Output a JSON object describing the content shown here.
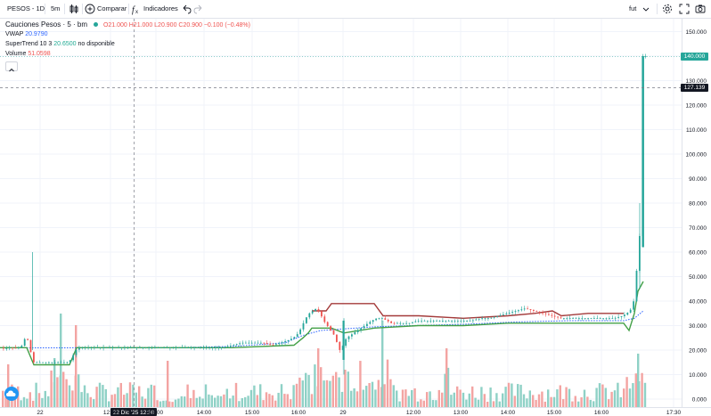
{
  "toolbar": {
    "symbol": "PESOS - 1D",
    "interval": "5m",
    "compare_label": "Comparar",
    "indicators_label": "Indicadores",
    "fut_label": "fut"
  },
  "legend": {
    "title": "Cauciones Pesos · 5 · bm",
    "ohlc": "O21.000 H21.000 L20.900 C20.900 −0.100 (−0.48%)",
    "vwap_label": "VWAP",
    "vwap_value": "20.9790",
    "supertrend_label": "SuperTrend 10 3",
    "supertrend_value": "20.6500",
    "supertrend_extra": "no disponible",
    "volume_label": "Volume",
    "volume_value": "51.0598"
  },
  "price_tags": {
    "last": "140.000",
    "crosshair": "127.139",
    "last_color": "#26a69a",
    "crosshair_color": "#131722"
  },
  "crosshair_time_label": "22 Dic '25   12:30",
  "colors": {
    "up": "#26a69a",
    "down": "#ef5350",
    "vol_up": "#8fd1c6",
    "vol_down": "#f3a4a2",
    "vwap": "#2962ff",
    "st_up": "#43a047",
    "st_down": "#a33a3a"
  },
  "chart_data": {
    "type": "candlestick",
    "symbol": "Cauciones Pesos",
    "y_axis": {
      "ylim": [
        0,
        150
      ],
      "tick_labels": [
        "150.000",
        "140.000",
        "130.000",
        "120.000",
        "110.000",
        "100.000",
        "90.000",
        "80.000",
        "70.000",
        "60.000",
        "50.000",
        "40.000",
        "30.000",
        "20.000",
        "10.000",
        "0.000"
      ]
    },
    "x_axis": {
      "tick_labels": [
        "22",
        "12:00",
        "13:00",
        "14:00",
        "15:00",
        "16:00",
        "29",
        "12:00",
        "13:00",
        "14:00",
        "15:00",
        "16:00",
        "17:30"
      ]
    },
    "price_path": [
      [
        0,
        21
      ],
      [
        6,
        20.5
      ],
      [
        12,
        21
      ],
      [
        18,
        20.8
      ],
      [
        22,
        21
      ],
      [
        26,
        22
      ],
      [
        30,
        26
      ],
      [
        33,
        23
      ],
      [
        36,
        18
      ],
      [
        38,
        15
      ],
      [
        42,
        15
      ],
      [
        46,
        15
      ],
      [
        50,
        15
      ],
      [
        55,
        15
      ],
      [
        60,
        15
      ],
      [
        64,
        15
      ],
      [
        68,
        15
      ],
      [
        72,
        15
      ],
      [
        76,
        15
      ],
      [
        80,
        16
      ],
      [
        83,
        18
      ],
      [
        86,
        20
      ],
      [
        88,
        21
      ],
      [
        100,
        21
      ],
      [
        130,
        21
      ],
      [
        160,
        21
      ],
      [
        190,
        21
      ],
      [
        220,
        21
      ],
      [
        250,
        21
      ],
      [
        262,
        22
      ],
      [
        272,
        23
      ],
      [
        284,
        23
      ],
      [
        296,
        23
      ],
      [
        306,
        22
      ],
      [
        316,
        23
      ],
      [
        324,
        24
      ],
      [
        330,
        25
      ],
      [
        336,
        27
      ],
      [
        340,
        30
      ],
      [
        344,
        33
      ],
      [
        348,
        35
      ],
      [
        352,
        36
      ],
      [
        356,
        37
      ],
      [
        360,
        35
      ],
      [
        364,
        32
      ],
      [
        368,
        30
      ],
      [
        372,
        28
      ],
      [
        376,
        26
      ],
      [
        378,
        24
      ],
      [
        380,
        22
      ],
      [
        382,
        20
      ],
      [
        384,
        21
      ],
      [
        386,
        22
      ],
      [
        388,
        24
      ],
      [
        390,
        25
      ],
      [
        394,
        26
      ],
      [
        398,
        27
      ],
      [
        402,
        28
      ],
      [
        406,
        29
      ],
      [
        410,
        30
      ],
      [
        414,
        31
      ],
      [
        418,
        32
      ],
      [
        424,
        33
      ],
      [
        430,
        33
      ],
      [
        440,
        31
      ],
      [
        450,
        31
      ],
      [
        460,
        31
      ],
      [
        470,
        32
      ],
      [
        480,
        32
      ],
      [
        490,
        32
      ],
      [
        500,
        32
      ],
      [
        510,
        32
      ],
      [
        520,
        32
      ],
      [
        530,
        32
      ],
      [
        540,
        33
      ],
      [
        550,
        33
      ],
      [
        560,
        34
      ],
      [
        570,
        35
      ],
      [
        580,
        36
      ],
      [
        590,
        37
      ],
      [
        600,
        36
      ],
      [
        610,
        35
      ],
      [
        620,
        34
      ],
      [
        630,
        33
      ],
      [
        640,
        33
      ],
      [
        650,
        33
      ],
      [
        660,
        33
      ],
      [
        670,
        33
      ],
      [
        680,
        33
      ],
      [
        690,
        33
      ],
      [
        700,
        34
      ],
      [
        704,
        35
      ],
      [
        708,
        36
      ],
      [
        712,
        40
      ],
      [
        716,
        55
      ],
      [
        718,
        62
      ],
      [
        720,
        75
      ],
      [
        722,
        140
      ]
    ],
    "supertrend": [
      [
        0,
        21
      ],
      [
        30,
        21
      ],
      [
        38,
        14
      ],
      [
        78,
        14
      ],
      [
        86,
        21
      ],
      [
        260,
        21
      ],
      [
        330,
        22
      ],
      [
        340,
        25
      ],
      [
        346,
        27
      ],
      [
        350,
        29
      ],
      [
        372,
        29
      ],
      [
        386,
        27
      ],
      [
        420,
        29
      ],
      [
        470,
        30
      ],
      [
        520,
        30
      ],
      [
        570,
        31
      ],
      [
        620,
        31
      ],
      [
        660,
        31
      ],
      [
        700,
        31
      ],
      [
        706,
        28
      ],
      [
        712,
        35
      ],
      [
        716,
        44
      ],
      [
        722,
        48
      ]
    ],
    "supertrend_down": [
      [
        350,
        36
      ],
      [
        366,
        36
      ],
      [
        372,
        39
      ],
      [
        420,
        39
      ],
      [
        430,
        34
      ],
      [
        470,
        34
      ],
      [
        520,
        33
      ],
      [
        570,
        34
      ],
      [
        600,
        35
      ],
      [
        620,
        36
      ],
      [
        630,
        34
      ],
      [
        660,
        35
      ],
      [
        700,
        35
      ]
    ],
    "vwap": [
      [
        0,
        20.9
      ],
      [
        60,
        20.9
      ],
      [
        120,
        21
      ],
      [
        200,
        21
      ],
      [
        260,
        21.5
      ],
      [
        320,
        23
      ],
      [
        340,
        26
      ],
      [
        360,
        28
      ],
      [
        380,
        28.5
      ],
      [
        420,
        29.5
      ],
      [
        460,
        30
      ],
      [
        520,
        30.5
      ],
      [
        580,
        31.5
      ],
      [
        640,
        32
      ],
      [
        680,
        32
      ],
      [
        700,
        32
      ],
      [
        712,
        33
      ],
      [
        722,
        36
      ]
    ],
    "volume_note": "volume histogram in the lower pane, green = up bars, red = down bars"
  }
}
